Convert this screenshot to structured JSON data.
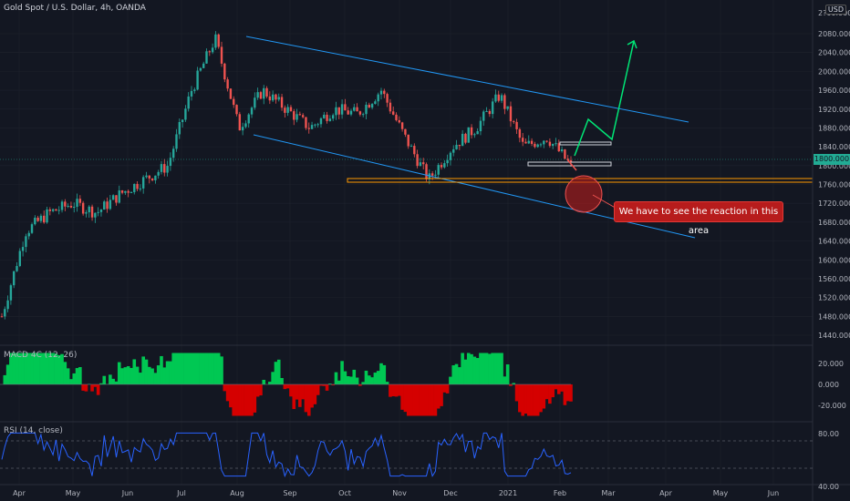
{
  "header": {
    "symbol_title": "Gold Spot / U.S. Dollar, 4h, OANDA",
    "currency_badge": "USD",
    "top_axis_partial": "2?00.000",
    "current_price_tag": "1800.000"
  },
  "price_axis": {
    "ticks": [
      "2080.000",
      "2040.000",
      "2000.000",
      "1960.000",
      "1920.000",
      "1880.000",
      "1840.000",
      "1800.000",
      "1760.000",
      "1720.000",
      "1680.000",
      "1640.000",
      "1600.000",
      "1560.000",
      "1520.000",
      "1480.000",
      "1440.000"
    ]
  },
  "macd_pane": {
    "label": "MACD 4C (12, 26)",
    "ticks": [
      "20.000",
      "0.000",
      "-20.000"
    ]
  },
  "rsi_pane": {
    "label": "RSI (14, close)",
    "ticks": [
      "80.00",
      "40.00"
    ]
  },
  "time_axis": {
    "labels": [
      "Apr",
      "May",
      "Jun",
      "Jul",
      "Aug",
      "Sep",
      "Oct",
      "Nov",
      "Dec",
      "2021",
      "Feb",
      "Mar",
      "Apr",
      "May",
      "Jun"
    ]
  },
  "annotation": {
    "text": "We have to see the reaction in this area"
  },
  "colors": {
    "background": "#131722",
    "up_candle": "#26a69a",
    "down_candle": "#ef5350",
    "channel_line": "#2196f3",
    "projection_arrow": "#00e676",
    "support_zone": "#ff9800",
    "macd_up": "#00c853",
    "macd_down": "#d50000",
    "rsi_line": "#2962ff",
    "note_background": "#b71c1c"
  },
  "chart_data": {
    "type": "candlestick",
    "title": "Gold Spot / U.S. Dollar, 4h, OANDA",
    "y_range": [
      1440,
      2100
    ],
    "x_labels": [
      "Apr",
      "May",
      "Jun",
      "Jul",
      "Aug",
      "Sep",
      "Oct",
      "Nov",
      "Dec",
      "2021",
      "Feb",
      "Mar",
      "Apr",
      "May",
      "Jun"
    ],
    "price_path": [
      [
        "Apr",
        1480
      ],
      [
        "Apr",
        1660
      ],
      [
        "May",
        1700
      ],
      [
        "May",
        1720
      ],
      [
        "Jun",
        1700
      ],
      [
        "Jun",
        1740
      ],
      [
        "Jul",
        1770
      ],
      [
        "Jul",
        1800
      ],
      [
        "Aug",
        1960
      ],
      [
        "Aug",
        2070
      ],
      [
        "Aug",
        1880
      ],
      [
        "Sep",
        1960
      ],
      [
        "Sep",
        1920
      ],
      [
        "Oct",
        1880
      ],
      [
        "Oct",
        1920
      ],
      [
        "Nov",
        1910
      ],
      [
        "Nov",
        1960
      ],
      [
        "Nov",
        1860
      ],
      [
        "Dec",
        1770
      ],
      [
        "Dec",
        1840
      ],
      [
        "2021",
        1880
      ],
      [
        "2021",
        1950
      ],
      [
        "2021",
        1840
      ],
      [
        "Feb",
        1860
      ],
      [
        "Feb",
        1800
      ]
    ],
    "macd": {
      "name": "MACD 4C (12, 26)",
      "range": [
        -30,
        30
      ]
    },
    "rsi": {
      "name": "RSI (14, close)",
      "levels": [
        70,
        30
      ]
    }
  }
}
